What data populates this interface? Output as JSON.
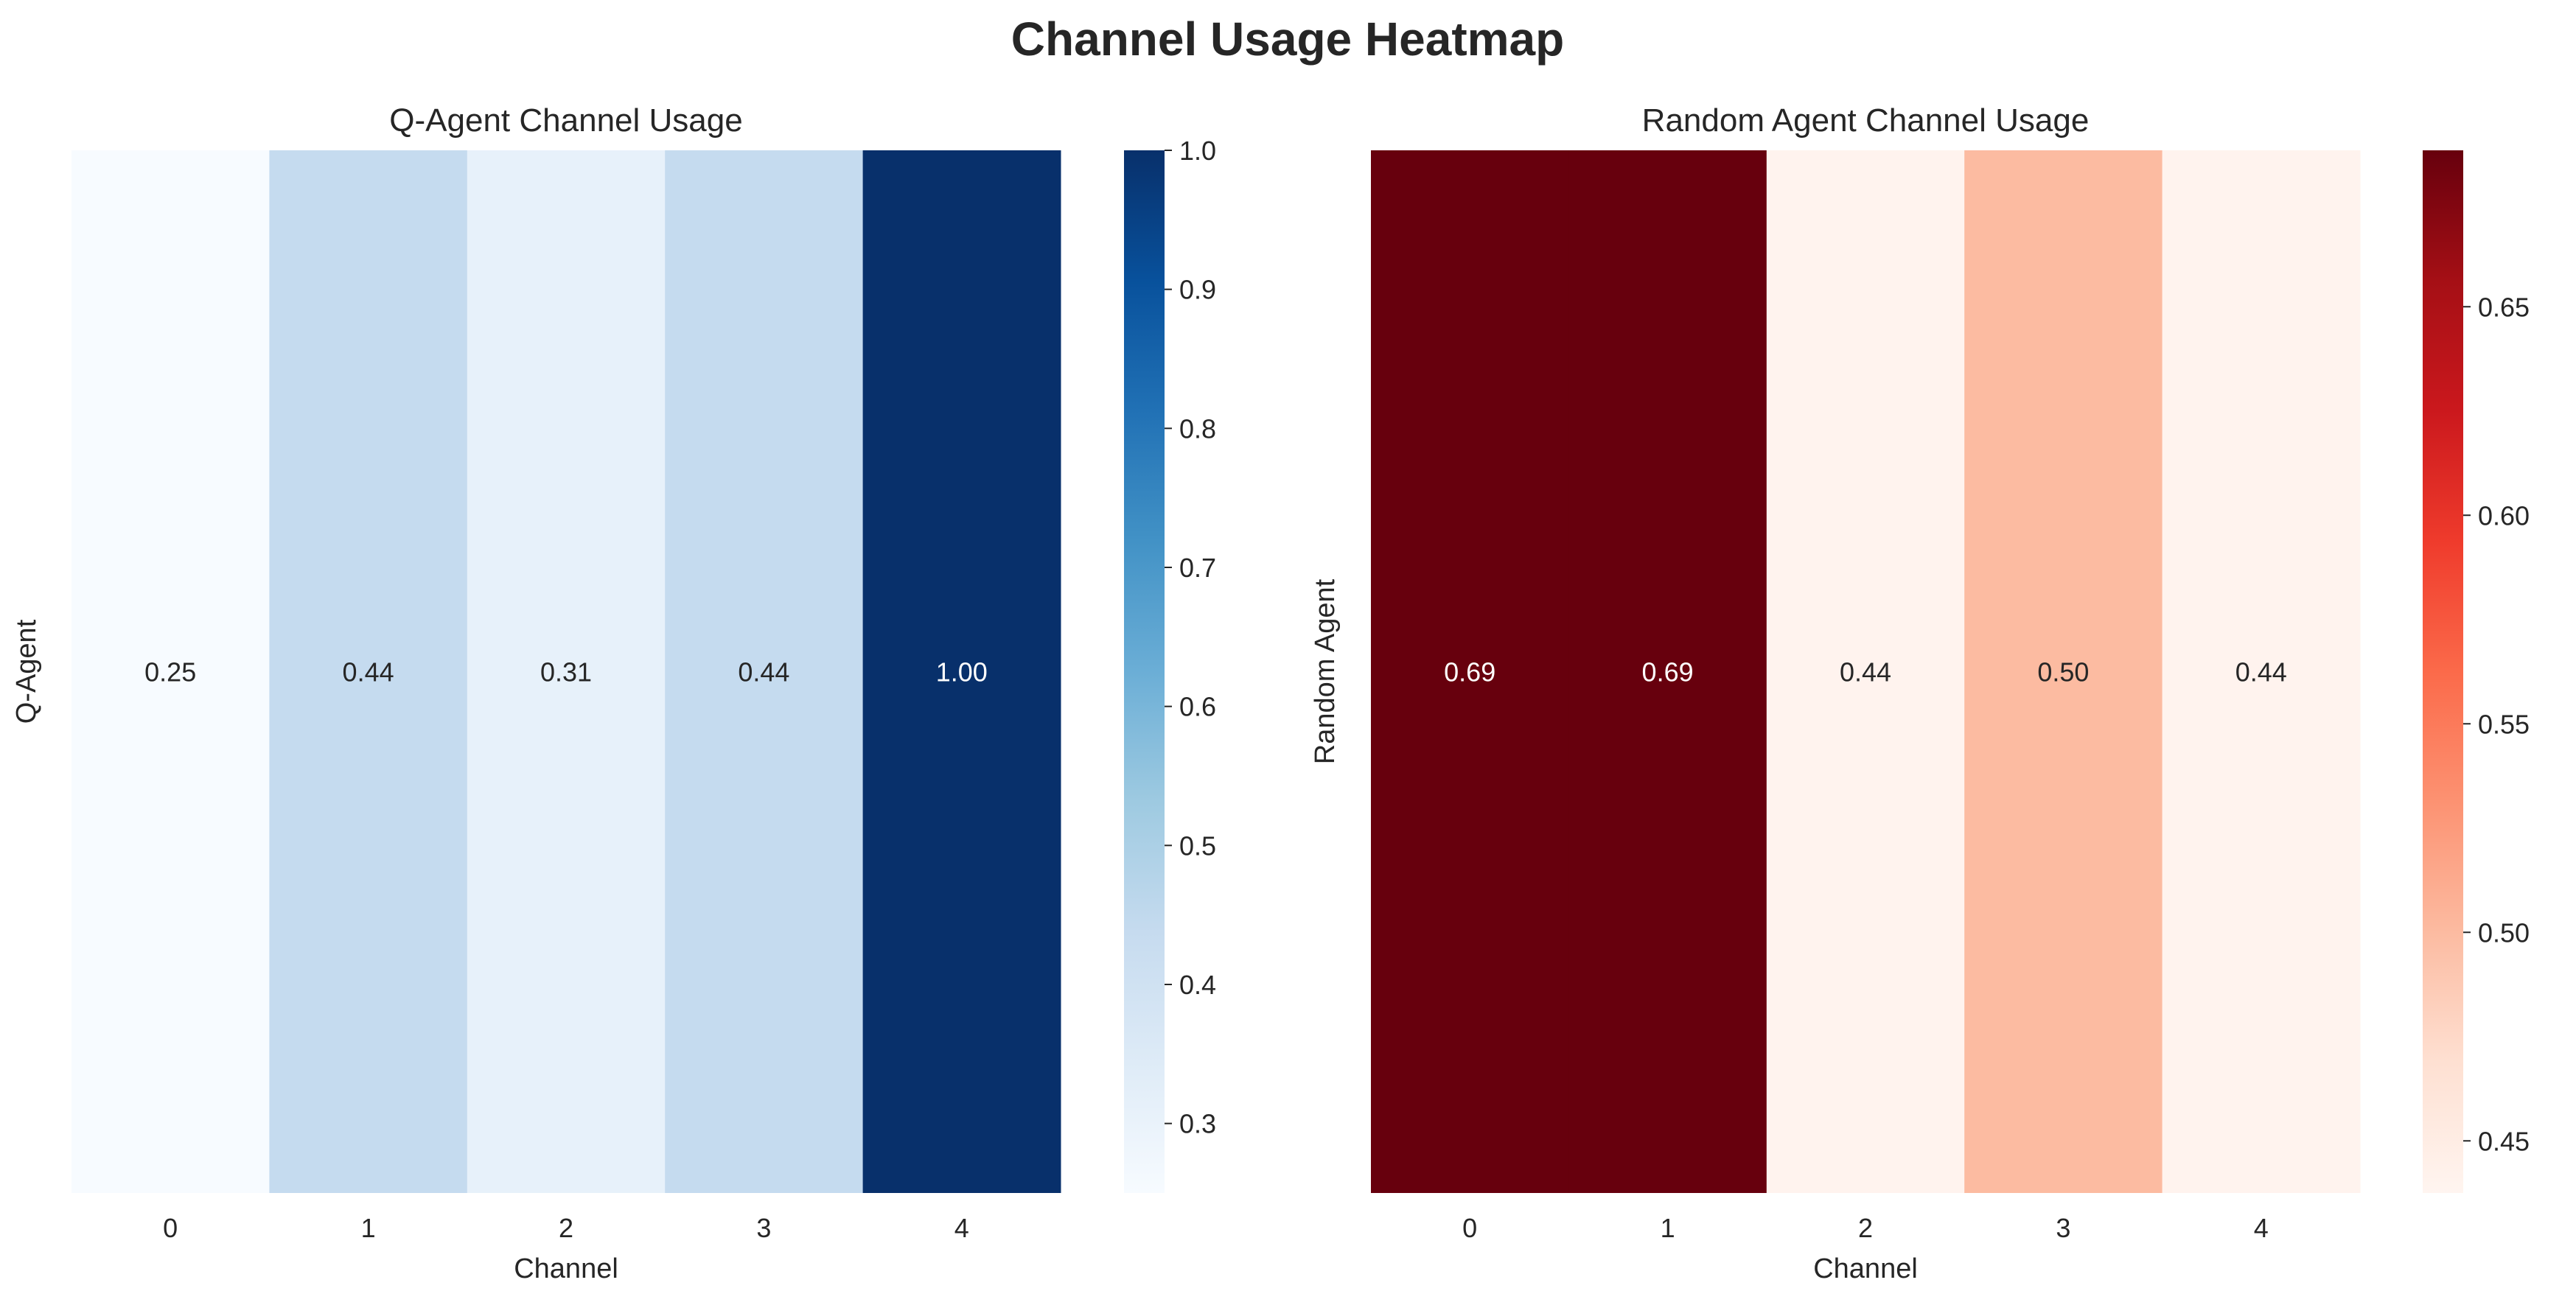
{
  "figure": {
    "title": "Channel Usage Heatmap"
  },
  "chart_data": [
    {
      "type": "heatmap",
      "title": "Q-Agent Channel Usage",
      "xlabel": "Channel",
      "ylabel": "Q-Agent",
      "x": [
        "0",
        "1",
        "2",
        "3",
        "4"
      ],
      "y": [
        ""
      ],
      "values": [
        [
          0.25,
          0.44,
          0.31,
          0.44,
          1.0
        ]
      ],
      "value_format": "0.00",
      "colormap": "Blues",
      "color_stops": [
        "#f7fbff",
        "#deebf7",
        "#c6dbef",
        "#9ecae1",
        "#6baed6",
        "#4292c6",
        "#2171b5",
        "#08519c",
        "#08306b"
      ],
      "colorbar": {
        "range": [
          0.25,
          1.0
        ],
        "ticks": [
          0.3,
          0.4,
          0.5,
          0.6,
          0.7,
          0.8,
          0.9,
          1.0
        ],
        "tick_labels": [
          "0.3",
          "0.4",
          "0.5",
          "0.6",
          "0.7",
          "0.8",
          "0.9",
          "1.0"
        ]
      },
      "grid": false
    },
    {
      "type": "heatmap",
      "title": "Random Agent Channel Usage",
      "xlabel": "Channel",
      "ylabel": "Random Agent",
      "x": [
        "0",
        "1",
        "2",
        "3",
        "4"
      ],
      "y": [
        ""
      ],
      "values": [
        [
          0.69,
          0.69,
          0.44,
          0.5,
          0.44
        ]
      ],
      "value_format": "0.00",
      "colormap": "Reds",
      "color_stops": [
        "#fff5f0",
        "#fee0d2",
        "#fcbba1",
        "#fc9272",
        "#fb6a4a",
        "#ef3b2c",
        "#cb181d",
        "#a50f15",
        "#67000d"
      ],
      "colorbar": {
        "range": [
          0.4375,
          0.6875
        ],
        "ticks": [
          0.45,
          0.5,
          0.55,
          0.6,
          0.65
        ],
        "tick_labels": [
          "0.45",
          "0.50",
          "0.55",
          "0.60",
          "0.65"
        ]
      },
      "grid": false
    }
  ]
}
